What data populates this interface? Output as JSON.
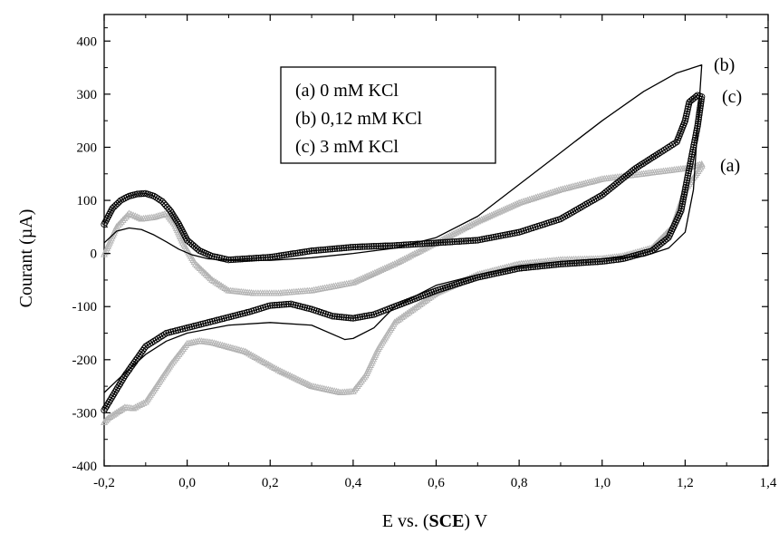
{
  "chart_data": {
    "type": "line",
    "title": "",
    "xlabel_prefix": "E vs. (",
    "xlabel_bold": "SCE",
    "xlabel_suffix": ") V",
    "ylabel": "Courant (µA)",
    "xlim": [
      -0.2,
      1.4
    ],
    "ylim": [
      -400,
      450
    ],
    "xticks": [
      -0.2,
      0.0,
      0.2,
      0.4,
      0.6,
      0.8,
      1.0,
      1.2,
      1.4
    ],
    "xtick_labels": [
      "-0,2",
      "0,0",
      "0,2",
      "0,4",
      "0,6",
      "0,8",
      "1,0",
      "1,2",
      "1,4"
    ],
    "yticks": [
      -400,
      -300,
      -200,
      -100,
      0,
      100,
      200,
      300,
      400
    ],
    "ytick_labels": [
      "-400",
      "-300",
      "-200",
      "-100",
      "0",
      "100",
      "200",
      "300",
      "400"
    ],
    "grid": false,
    "legend": {
      "placement": "top-center",
      "entries": [
        "(a)  0 mM KCl",
        "(b)  0,12 mM KCl",
        "(c)  3 mM KCl"
      ]
    },
    "series": [
      {
        "name": "(a)  0 mM KCl",
        "label": "(a)",
        "color": "#b3b3b3",
        "marker": "triangle",
        "x": [
          -0.2,
          -0.17,
          -0.14,
          -0.11,
          -0.08,
          -0.05,
          -0.03,
          -0.01,
          0.02,
          0.06,
          0.1,
          0.16,
          0.22,
          0.3,
          0.4,
          0.5,
          0.6,
          0.7,
          0.8,
          0.9,
          1.0,
          1.1,
          1.2,
          1.24,
          1.24,
          1.2,
          1.17,
          1.12,
          1.05,
          1.0,
          0.9,
          0.8,
          0.7,
          0.6,
          0.5,
          0.46,
          0.43,
          0.4,
          0.37,
          0.3,
          0.22,
          0.14,
          0.06,
          0.03,
          0.0,
          -0.04,
          -0.1,
          -0.13,
          -0.15,
          -0.17,
          -0.19,
          -0.2
        ],
        "y": [
          -2,
          50,
          75,
          65,
          68,
          75,
          55,
          20,
          -20,
          -50,
          -70,
          -75,
          -75,
          -70,
          -55,
          -20,
          20,
          60,
          95,
          120,
          140,
          150,
          160,
          168,
          165,
          120,
          50,
          10,
          -5,
          -10,
          -12,
          -20,
          -40,
          -75,
          -130,
          -180,
          -230,
          -260,
          -262,
          -250,
          -220,
          -185,
          -168,
          -165,
          -170,
          -210,
          -280,
          -292,
          -290,
          -300,
          -310,
          -318
        ]
      },
      {
        "name": "(b)  0,12 mM KCl",
        "label": "(b)",
        "color": "#000000",
        "marker": "none",
        "x": [
          -0.2,
          -0.17,
          -0.14,
          -0.11,
          -0.08,
          -0.05,
          -0.02,
          0.01,
          0.05,
          0.1,
          0.2,
          0.3,
          0.4,
          0.5,
          0.6,
          0.7,
          0.8,
          0.9,
          1.0,
          1.1,
          1.18,
          1.24,
          1.22,
          1.2,
          1.16,
          1.1,
          1.0,
          0.9,
          0.8,
          0.7,
          0.6,
          0.5,
          0.45,
          0.4,
          0.38,
          0.3,
          0.2,
          0.1,
          0.0,
          -0.05,
          -0.1,
          -0.15,
          -0.2
        ],
        "y": [
          20,
          42,
          48,
          45,
          35,
          22,
          8,
          -2,
          -10,
          -13,
          -13,
          -8,
          0,
          10,
          30,
          70,
          130,
          190,
          250,
          305,
          340,
          355,
          120,
          40,
          10,
          -5,
          -10,
          -15,
          -25,
          -40,
          -60,
          -100,
          -140,
          -160,
          -162,
          -135,
          -130,
          -135,
          -150,
          -165,
          -190,
          -225,
          -262
        ]
      },
      {
        "name": "(c)  3 mM KCl",
        "label": "(c)",
        "color": "#000000",
        "marker": "circle",
        "x": [
          -0.2,
          -0.18,
          -0.16,
          -0.14,
          -0.12,
          -0.1,
          -0.08,
          -0.06,
          -0.04,
          -0.02,
          0.0,
          0.03,
          0.06,
          0.1,
          0.2,
          0.3,
          0.4,
          0.5,
          0.6,
          0.7,
          0.8,
          0.9,
          1.0,
          1.08,
          1.14,
          1.18,
          1.2,
          1.21,
          1.23,
          1.24,
          1.23,
          1.21,
          1.19,
          1.16,
          1.12,
          1.05,
          1.0,
          0.9,
          0.8,
          0.7,
          0.6,
          0.5,
          0.45,
          0.4,
          0.35,
          0.3,
          0.25,
          0.2,
          0.15,
          0.1,
          0.05,
          0.0,
          -0.05,
          -0.1,
          -0.15,
          -0.2
        ],
        "y": [
          55,
          85,
          100,
          108,
          112,
          113,
          108,
          98,
          80,
          55,
          25,
          5,
          -5,
          -12,
          -7,
          5,
          12,
          15,
          20,
          25,
          40,
          65,
          110,
          160,
          190,
          210,
          250,
          285,
          298,
          295,
          240,
          160,
          80,
          30,
          5,
          -10,
          -15,
          -20,
          -28,
          -45,
          -70,
          -100,
          -115,
          -122,
          -118,
          -105,
          -95,
          -98,
          -110,
          -120,
          -130,
          -140,
          -150,
          -175,
          -230,
          -295
        ]
      }
    ]
  }
}
